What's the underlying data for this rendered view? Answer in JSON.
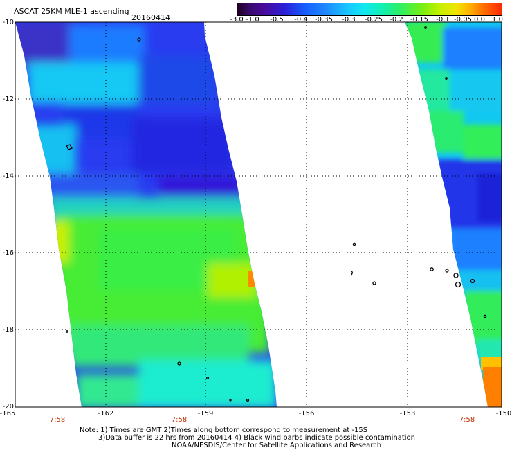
{
  "header": {
    "product": "ASCAT 25KM MLE-1 ascending",
    "date": "20160414"
  },
  "colorbar": {
    "labels": [
      "-3.0",
      "-1.0",
      "-0.5",
      "-0.4",
      "-0.35",
      "-0.3",
      "-0.25",
      "-0.2",
      "-0.15",
      "-0.1",
      "-0.05",
      "0.0",
      "1.0"
    ],
    "colors": [
      "#200020",
      "#4a0a8a",
      "#2a20d8",
      "#1560ff",
      "#1ea8ff",
      "#10e8f0",
      "#12f0b0",
      "#30f060",
      "#7aee10",
      "#c8f000",
      "#f0e400",
      "#ff9000",
      "#ff2a00"
    ]
  },
  "map": {
    "lat_labels": [
      "-10",
      "-12",
      "-14",
      "-16",
      "-18",
      "-20"
    ],
    "lon_labels": [
      "-165",
      "-162",
      "-159",
      "-156",
      "-153",
      "-150"
    ],
    "lat_range": [
      -20,
      -10
    ],
    "lon_range": [
      -165,
      -150
    ],
    "gridlines": true,
    "time_labels": [
      "7:58",
      "7:58",
      "7:58"
    ],
    "time_label_color": "#c03000"
  },
  "footer": {
    "line1": "Note: 1) Times are GMT 2)Times along bottom correspond to measurement at -15S",
    "line2": "3)Data buffer is 22 hrs from 20160414 4) Black wind barbs indicate possible contamination",
    "line3": "NOAA/NESDIS/Center for Satellite Applications and Research"
  }
}
